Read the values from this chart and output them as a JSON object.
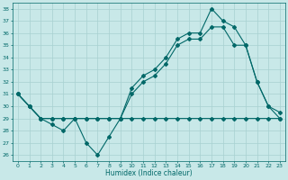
{
  "xlabel": "Humidex (Indice chaleur)",
  "bg_color": "#c8e8e8",
  "line_color": "#006868",
  "grid_color": "#a8d0d0",
  "xlim": [
    -0.5,
    23.5
  ],
  "ylim": [
    25.5,
    38.5
  ],
  "yticks": [
    26,
    27,
    28,
    29,
    30,
    31,
    32,
    33,
    34,
    35,
    36,
    37,
    38
  ],
  "xticks": [
    0,
    1,
    2,
    3,
    4,
    5,
    6,
    7,
    8,
    9,
    10,
    11,
    12,
    13,
    14,
    15,
    16,
    17,
    18,
    19,
    20,
    21,
    22,
    23
  ],
  "line1": {
    "x": [
      0,
      1,
      2,
      3,
      4,
      5,
      6,
      7,
      8,
      9,
      10,
      11,
      12,
      13,
      14,
      15,
      16,
      17,
      18,
      19,
      20,
      21,
      22,
      23
    ],
    "y": [
      31,
      30,
      29,
      28.5,
      28,
      29,
      27,
      26,
      27.5,
      29,
      29,
      29,
      29,
      29,
      29,
      29,
      29,
      29,
      29,
      29,
      29,
      29,
      29,
      29
    ]
  },
  "line2": {
    "x": [
      0,
      1,
      2,
      3,
      4,
      5,
      6,
      7,
      8,
      9,
      10,
      11,
      12,
      13,
      14,
      15,
      16,
      17,
      18,
      19,
      20,
      21,
      22,
      23
    ],
    "y": [
      31,
      30,
      29,
      29,
      29,
      29,
      29,
      29,
      29,
      29,
      31,
      32,
      32.5,
      33.5,
      35,
      35.5,
      35.5,
      36.5,
      36.5,
      35,
      35,
      32,
      30,
      29
    ]
  },
  "line3": {
    "x": [
      0,
      1,
      2,
      3,
      4,
      5,
      6,
      7,
      8,
      9,
      10,
      11,
      12,
      13,
      14,
      15,
      16,
      17,
      18,
      19,
      20,
      21,
      22,
      23
    ],
    "y": [
      31,
      30,
      29,
      29,
      29,
      29,
      29,
      29,
      29,
      29,
      31.5,
      32.5,
      33,
      34,
      35.5,
      36,
      36,
      38,
      37,
      36.5,
      35,
      32,
      30,
      29.5
    ]
  }
}
